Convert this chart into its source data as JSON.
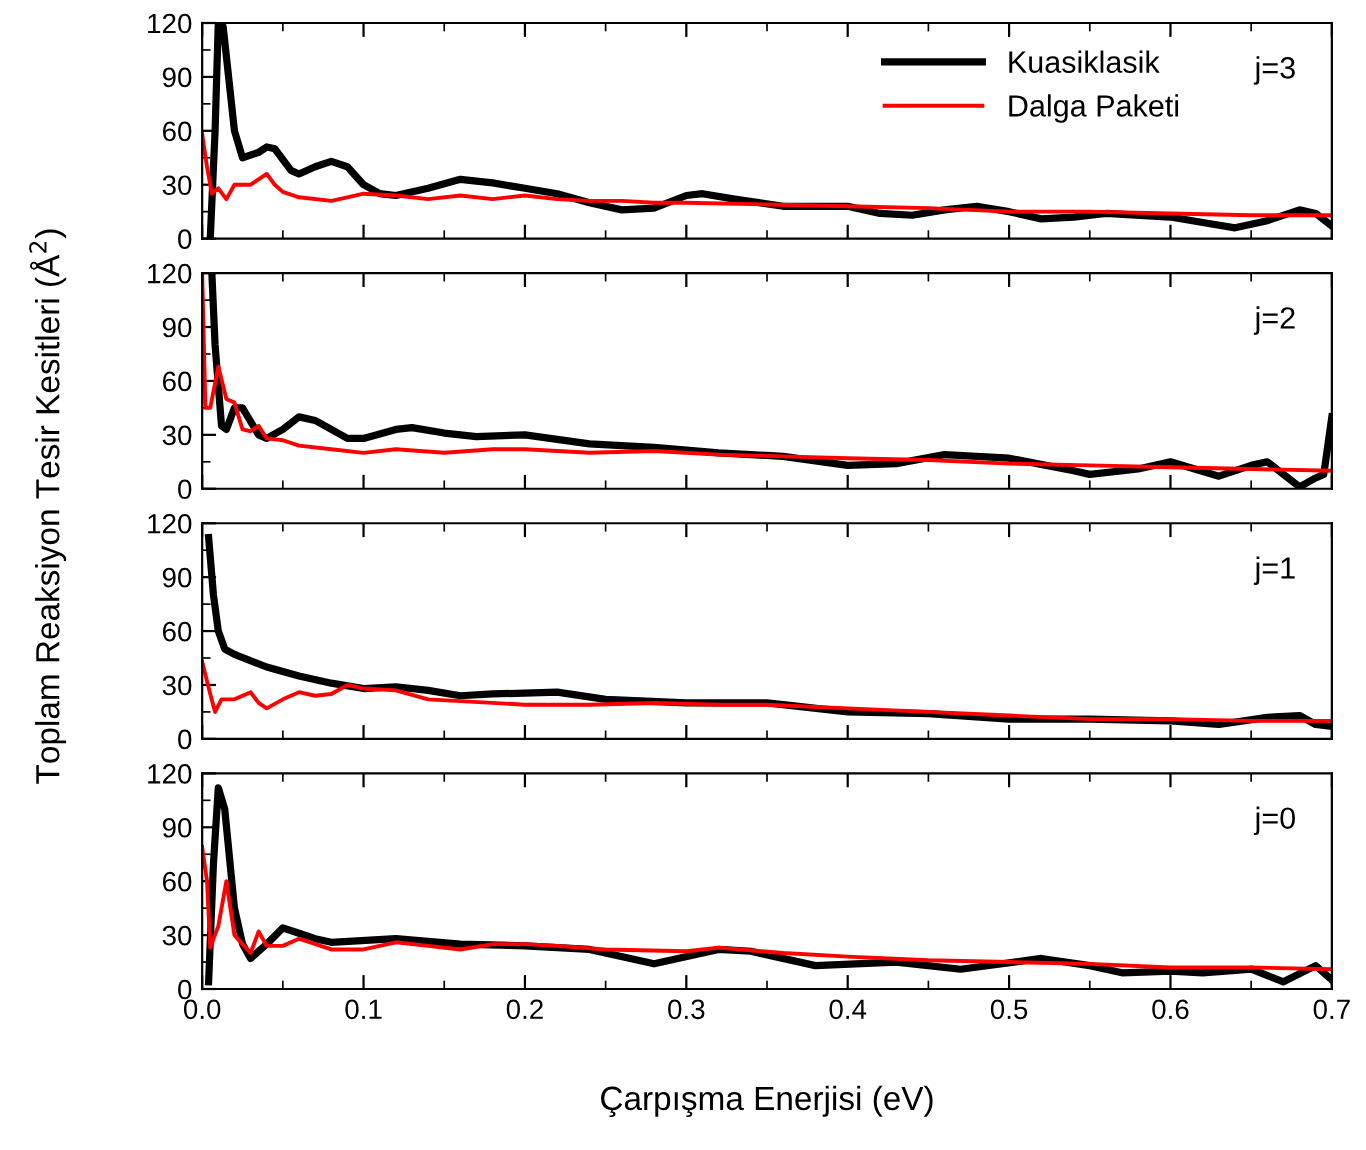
{
  "chart_data": [
    {
      "type": "line",
      "ylabel": "Toplam Reaksiyon Tesir Kesitleri (Å$^{2}$)",
      "annotations": [
        "j=3"
      ],
      "xlim": [
        0,
        0.7
      ],
      "ylim": [
        0,
        120
      ],
      "xticks": [
        0,
        0.1,
        0.2,
        0.3,
        0.4,
        0.5,
        0.6,
        0.7
      ],
      "yticks": [
        0,
        30,
        60,
        90,
        120
      ],
      "tick_labels": "y",
      "legend": "top right",
      "grid": false,
      "series": [
        {
          "name": "Kuasiklasik",
          "color": "#000000",
          "x": [
            0.005,
            0.008,
            0.01,
            0.013,
            0.02,
            0.025,
            0.035,
            0.04,
            0.045,
            0.055,
            0.06,
            0.07,
            0.08,
            0.09,
            0.1,
            0.11,
            0.12,
            0.14,
            0.16,
            0.18,
            0.2,
            0.22,
            0.24,
            0.26,
            0.28,
            0.3,
            0.31,
            0.33,
            0.36,
            0.4,
            0.42,
            0.44,
            0.46,
            0.48,
            0.5,
            0.52,
            0.54,
            0.56,
            0.6,
            0.62,
            0.64,
            0.66,
            0.68,
            0.69,
            0.7
          ],
          "values": [
            0,
            60,
            120,
            118,
            60,
            45,
            48,
            51,
            50,
            38,
            36,
            40,
            43,
            40,
            30,
            25,
            24,
            28,
            33,
            31,
            28,
            25,
            20,
            16,
            17,
            24,
            25,
            22,
            18,
            18,
            14,
            13,
            16,
            18,
            15,
            11,
            12,
            14,
            12,
            9,
            6,
            10,
            16,
            14,
            7
          ]
        },
        {
          "name": "Dalga Paketi",
          "color": "#ff0000",
          "x": [
            0,
            0.003,
            0.006,
            0.01,
            0.015,
            0.02,
            0.03,
            0.04,
            0.045,
            0.05,
            0.06,
            0.08,
            0.09,
            0.1,
            0.12,
            0.14,
            0.16,
            0.18,
            0.2,
            0.22,
            0.24,
            0.26,
            0.28,
            0.3,
            0.35,
            0.4,
            0.45,
            0.5,
            0.55,
            0.6,
            0.65,
            0.7
          ],
          "values": [
            58,
            40,
            25,
            28,
            22,
            30,
            30,
            36,
            30,
            26,
            23,
            21,
            23,
            25,
            24,
            22,
            24,
            22,
            24,
            22,
            21,
            21,
            20,
            20,
            19,
            18,
            17,
            15,
            15,
            14,
            13,
            13
          ]
        }
      ]
    },
    {
      "type": "line",
      "annotations": [
        "j=2"
      ],
      "xlim": [
        0,
        0.7
      ],
      "ylim": [
        0,
        120
      ],
      "xticks": [
        0,
        0.1,
        0.2,
        0.3,
        0.4,
        0.5,
        0.6,
        0.7
      ],
      "yticks": [
        0,
        30,
        60,
        90,
        120
      ],
      "tick_labels": "y",
      "grid": false,
      "series": [
        {
          "color": "#000000",
          "x": [
            0.006,
            0.008,
            0.012,
            0.015,
            0.02,
            0.025,
            0.035,
            0.04,
            0.05,
            0.06,
            0.07,
            0.09,
            0.1,
            0.12,
            0.13,
            0.15,
            0.17,
            0.2,
            0.24,
            0.28,
            0.32,
            0.36,
            0.4,
            0.43,
            0.46,
            0.5,
            0.54,
            0.55,
            0.58,
            0.6,
            0.63,
            0.65,
            0.66,
            0.68,
            0.69,
            0.695,
            0.7
          ],
          "values": [
            120,
            80,
            35,
            33,
            45,
            45,
            30,
            28,
            33,
            40,
            38,
            28,
            28,
            33,
            34,
            31,
            29,
            30,
            25,
            23,
            20,
            18,
            13,
            14,
            19,
            17,
            10,
            8,
            11,
            15,
            7,
            13,
            15,
            1,
            6,
            8,
            40
          ]
        },
        {
          "color": "#ff0000",
          "x": [
            0,
            0.002,
            0.005,
            0.01,
            0.015,
            0.02,
            0.025,
            0.03,
            0.035,
            0.04,
            0.05,
            0.06,
            0.08,
            0.1,
            0.12,
            0.15,
            0.18,
            0.2,
            0.24,
            0.28,
            0.32,
            0.36,
            0.4,
            0.45,
            0.5,
            0.55,
            0.6,
            0.65,
            0.7
          ],
          "values": [
            120,
            45,
            45,
            68,
            50,
            48,
            33,
            32,
            35,
            28,
            27,
            24,
            22,
            20,
            22,
            20,
            22,
            22,
            20,
            21,
            19,
            18,
            17,
            16,
            14,
            13,
            12,
            11,
            10
          ]
        }
      ]
    },
    {
      "type": "line",
      "annotations": [
        "j=1"
      ],
      "xlim": [
        0,
        0.7
      ],
      "ylim": [
        0,
        120
      ],
      "xticks": [
        0,
        0.1,
        0.2,
        0.3,
        0.4,
        0.5,
        0.6,
        0.7
      ],
      "yticks": [
        0,
        30,
        60,
        90,
        120
      ],
      "tick_labels": "y",
      "grid": false,
      "series": [
        {
          "color": "#000000",
          "x": [
            0.004,
            0.007,
            0.01,
            0.014,
            0.02,
            0.04,
            0.06,
            0.08,
            0.1,
            0.12,
            0.14,
            0.16,
            0.18,
            0.22,
            0.25,
            0.3,
            0.35,
            0.4,
            0.45,
            0.5,
            0.55,
            0.6,
            0.63,
            0.66,
            0.68,
            0.69,
            0.7
          ],
          "values": [
            112,
            80,
            60,
            50,
            47,
            40,
            35,
            31,
            28,
            29,
            27,
            24,
            25,
            26,
            22,
            20,
            20,
            15,
            14,
            11,
            11,
            10,
            8,
            12,
            13,
            8,
            7
          ]
        },
        {
          "color": "#ff0000",
          "x": [
            0,
            0.005,
            0.008,
            0.012,
            0.02,
            0.03,
            0.035,
            0.04,
            0.05,
            0.06,
            0.07,
            0.08,
            0.09,
            0.1,
            0.12,
            0.14,
            0.16,
            0.2,
            0.24,
            0.28,
            0.32,
            0.35,
            0.4,
            0.45,
            0.5,
            0.55,
            0.6,
            0.65,
            0.7
          ],
          "values": [
            43,
            25,
            15,
            22,
            22,
            26,
            20,
            17,
            22,
            26,
            24,
            25,
            30,
            28,
            27,
            22,
            21,
            19,
            19,
            20,
            19,
            19,
            17,
            15,
            13,
            11,
            11,
            10,
            10
          ]
        }
      ]
    },
    {
      "type": "line",
      "xlabel": "Çarpışma Enerjisi (eV)",
      "annotations": [
        "j=0"
      ],
      "xlim": [
        0,
        0.7
      ],
      "ylim": [
        0,
        120
      ],
      "xticks": [
        {
          "value": 0,
          "label": "0.0"
        },
        0.1,
        0.2,
        0.3,
        0.4,
        0.5,
        0.6,
        0.7
      ],
      "yticks": [
        0,
        30,
        60,
        90,
        120
      ],
      "grid": false,
      "series": [
        {
          "color": "#000000",
          "x": [
            0.004,
            0.007,
            0.01,
            0.014,
            0.02,
            0.025,
            0.03,
            0.04,
            0.05,
            0.06,
            0.07,
            0.08,
            0.12,
            0.16,
            0.2,
            0.24,
            0.28,
            0.32,
            0.34,
            0.38,
            0.43,
            0.47,
            0.52,
            0.55,
            0.57,
            0.6,
            0.62,
            0.65,
            0.67,
            0.69,
            0.7
          ],
          "values": [
            4,
            70,
            112,
            100,
            45,
            25,
            17,
            25,
            34,
            31,
            28,
            26,
            28,
            25,
            24,
            22,
            14,
            22,
            21,
            13,
            15,
            11,
            17,
            13,
            9,
            10,
            9,
            11,
            4,
            13,
            5
          ]
        },
        {
          "color": "#ff0000",
          "x": [
            0,
            0.003,
            0.005,
            0.01,
            0.015,
            0.02,
            0.025,
            0.03,
            0.035,
            0.04,
            0.05,
            0.06,
            0.08,
            0.1,
            0.12,
            0.14,
            0.16,
            0.18,
            0.2,
            0.22,
            0.25,
            0.3,
            0.32,
            0.36,
            0.4,
            0.45,
            0.5,
            0.55,
            0.6,
            0.65,
            0.7
          ],
          "values": [
            79,
            60,
            23,
            35,
            60,
            30,
            25,
            20,
            32,
            24,
            24,
            28,
            22,
            22,
            26,
            24,
            22,
            25,
            25,
            24,
            22,
            21,
            23,
            20,
            18,
            16,
            15,
            14,
            12,
            12,
            11
          ]
        }
      ]
    }
  ]
}
